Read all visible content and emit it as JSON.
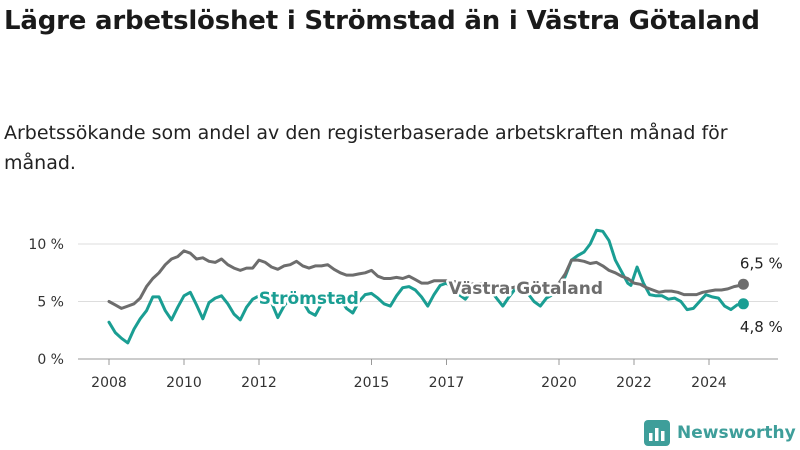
{
  "header": {
    "title": "Lägre arbetslöshet i Strömstad än i Västra Götaland",
    "subtitle": "Arbetssökande som andel av den registerbaserade arbetskraften månad för månad."
  },
  "brand": {
    "name": "Newsworthy",
    "icon": "newsworthy-logo-icon",
    "color": "#3e9e9a"
  },
  "chart_data": {
    "type": "line",
    "title": "Lägre arbetslöshet i Strömstad än i Västra Götaland",
    "subtitle": "Arbetssökande som andel av den registerbaserade arbetskraften månad för månad.",
    "ylim": [
      0,
      10
    ],
    "xlim": [
      "2008-01",
      "2025-12"
    ],
    "y_ticks": [
      {
        "value": 0,
        "label": "0 %"
      },
      {
        "value": 5,
        "label": "5 %"
      },
      {
        "value": 10,
        "label": "10 %"
      }
    ],
    "x_ticks": [
      {
        "value": "2008-01",
        "label": "2008"
      },
      {
        "value": "2010-01",
        "label": "2010"
      },
      {
        "value": "2012-01",
        "label": "2012"
      },
      {
        "value": "2015-01",
        "label": "2015"
      },
      {
        "value": "2017-01",
        "label": "2017"
      },
      {
        "value": "2020-01",
        "label": "2020"
      },
      {
        "value": "2022-01",
        "label": "2022"
      },
      {
        "value": "2024-01",
        "label": "2024"
      }
    ],
    "grid": true,
    "series": [
      {
        "name": "Strömstad",
        "color": "#1a9e93",
        "label_at": "2011-11",
        "end_label": "4,8 %",
        "points": [
          [
            "2008-01",
            3.2
          ],
          [
            "2008-03",
            2.3
          ],
          [
            "2008-05",
            1.8
          ],
          [
            "2008-07",
            1.4
          ],
          [
            "2008-09",
            2.6
          ],
          [
            "2008-11",
            3.5
          ],
          [
            "2009-01",
            4.2
          ],
          [
            "2009-03",
            5.4
          ],
          [
            "2009-05",
            5.4
          ],
          [
            "2009-07",
            4.2
          ],
          [
            "2009-09",
            3.4
          ],
          [
            "2009-11",
            4.5
          ],
          [
            "2010-01",
            5.5
          ],
          [
            "2010-03",
            5.8
          ],
          [
            "2010-05",
            4.7
          ],
          [
            "2010-07",
            3.5
          ],
          [
            "2010-09",
            4.9
          ],
          [
            "2010-11",
            5.3
          ],
          [
            "2011-01",
            5.5
          ],
          [
            "2011-03",
            4.8
          ],
          [
            "2011-05",
            3.9
          ],
          [
            "2011-07",
            3.4
          ],
          [
            "2011-09",
            4.5
          ],
          [
            "2011-11",
            5.2
          ],
          [
            "2012-01",
            5.5
          ],
          [
            "2012-03",
            5.5
          ],
          [
            "2012-05",
            4.9
          ],
          [
            "2012-07",
            3.6
          ],
          [
            "2012-09",
            4.6
          ],
          [
            "2012-11",
            5.3
          ],
          [
            "2013-01",
            5.4
          ],
          [
            "2013-03",
            5.0
          ],
          [
            "2013-05",
            4.1
          ],
          [
            "2013-07",
            3.8
          ],
          [
            "2013-09",
            4.8
          ],
          [
            "2013-11",
            5.4
          ],
          [
            "2014-01",
            5.3
          ],
          [
            "2014-03",
            5.2
          ],
          [
            "2014-05",
            4.4
          ],
          [
            "2014-07",
            4.0
          ],
          [
            "2014-09",
            5.0
          ],
          [
            "2014-11",
            5.6
          ],
          [
            "2015-01",
            5.7
          ],
          [
            "2015-03",
            5.3
          ],
          [
            "2015-05",
            4.8
          ],
          [
            "2015-07",
            4.6
          ],
          [
            "2015-09",
            5.5
          ],
          [
            "2015-11",
            6.2
          ],
          [
            "2016-01",
            6.3
          ],
          [
            "2016-03",
            6.0
          ],
          [
            "2016-05",
            5.4
          ],
          [
            "2016-07",
            4.6
          ],
          [
            "2016-09",
            5.6
          ],
          [
            "2016-11",
            6.4
          ],
          [
            "2017-01",
            6.6
          ],
          [
            "2017-03",
            6.1
          ],
          [
            "2017-05",
            5.6
          ],
          [
            "2017-07",
            5.2
          ],
          [
            "2017-09",
            5.9
          ],
          [
            "2017-11",
            6.4
          ],
          [
            "2018-01",
            6.5
          ],
          [
            "2018-03",
            6.0
          ],
          [
            "2018-05",
            5.3
          ],
          [
            "2018-07",
            4.6
          ],
          [
            "2018-09",
            5.4
          ],
          [
            "2018-11",
            6.1
          ],
          [
            "2019-01",
            6.2
          ],
          [
            "2019-03",
            5.7
          ],
          [
            "2019-05",
            5.0
          ],
          [
            "2019-07",
            4.6
          ],
          [
            "2019-09",
            5.3
          ],
          [
            "2019-11",
            5.6
          ],
          [
            "2020-01",
            6.0
          ],
          [
            "2020-03",
            7.2
          ],
          [
            "2020-05",
            8.6
          ],
          [
            "2020-07",
            9.0
          ],
          [
            "2020-09",
            9.3
          ],
          [
            "2020-11",
            10.0
          ],
          [
            "2021-01",
            11.2
          ],
          [
            "2021-03",
            11.1
          ],
          [
            "2021-05",
            10.3
          ],
          [
            "2021-07",
            8.6
          ],
          [
            "2021-09",
            7.6
          ],
          [
            "2021-11",
            6.6
          ],
          [
            "2021-12",
            6.4
          ],
          [
            "2022-02",
            8.0
          ],
          [
            "2022-04",
            6.6
          ],
          [
            "2022-06",
            5.6
          ],
          [
            "2022-08",
            5.5
          ],
          [
            "2022-10",
            5.5
          ],
          [
            "2022-12",
            5.2
          ],
          [
            "2023-02",
            5.3
          ],
          [
            "2023-04",
            5.0
          ],
          [
            "2023-06",
            4.3
          ],
          [
            "2023-08",
            4.4
          ],
          [
            "2023-10",
            5.0
          ],
          [
            "2023-12",
            5.6
          ],
          [
            "2024-02",
            5.4
          ],
          [
            "2024-04",
            5.3
          ],
          [
            "2024-06",
            4.6
          ],
          [
            "2024-08",
            4.3
          ],
          [
            "2024-10",
            4.7
          ],
          [
            "2024-12",
            4.8
          ]
        ]
      },
      {
        "name": "Västra Götaland",
        "color": "#6d6d6d",
        "label_at": "2017-01",
        "end_label": "6,5 %",
        "points": [
          [
            "2008-01",
            5.0
          ],
          [
            "2008-03",
            4.7
          ],
          [
            "2008-05",
            4.4
          ],
          [
            "2008-07",
            4.6
          ],
          [
            "2008-09",
            4.8
          ],
          [
            "2008-11",
            5.3
          ],
          [
            "2009-01",
            6.3
          ],
          [
            "2009-03",
            7.0
          ],
          [
            "2009-05",
            7.5
          ],
          [
            "2009-07",
            8.2
          ],
          [
            "2009-09",
            8.7
          ],
          [
            "2009-11",
            8.9
          ],
          [
            "2010-01",
            9.4
          ],
          [
            "2010-03",
            9.2
          ],
          [
            "2010-05",
            8.7
          ],
          [
            "2010-07",
            8.8
          ],
          [
            "2010-09",
            8.5
          ],
          [
            "2010-11",
            8.4
          ],
          [
            "2011-01",
            8.7
          ],
          [
            "2011-03",
            8.2
          ],
          [
            "2011-05",
            7.9
          ],
          [
            "2011-07",
            7.7
          ],
          [
            "2011-09",
            7.9
          ],
          [
            "2011-11",
            7.9
          ],
          [
            "2012-01",
            8.6
          ],
          [
            "2012-03",
            8.4
          ],
          [
            "2012-05",
            8.0
          ],
          [
            "2012-07",
            7.8
          ],
          [
            "2012-09",
            8.1
          ],
          [
            "2012-11",
            8.2
          ],
          [
            "2013-01",
            8.5
          ],
          [
            "2013-03",
            8.1
          ],
          [
            "2013-05",
            7.9
          ],
          [
            "2013-07",
            8.1
          ],
          [
            "2013-09",
            8.1
          ],
          [
            "2013-11",
            8.2
          ],
          [
            "2014-01",
            7.8
          ],
          [
            "2014-03",
            7.5
          ],
          [
            "2014-05",
            7.3
          ],
          [
            "2014-07",
            7.3
          ],
          [
            "2014-09",
            7.4
          ],
          [
            "2014-11",
            7.5
          ],
          [
            "2015-01",
            7.7
          ],
          [
            "2015-03",
            7.2
          ],
          [
            "2015-05",
            7.0
          ],
          [
            "2015-07",
            7.0
          ],
          [
            "2015-09",
            7.1
          ],
          [
            "2015-11",
            7.0
          ],
          [
            "2016-01",
            7.2
          ],
          [
            "2016-03",
            6.9
          ],
          [
            "2016-05",
            6.6
          ],
          [
            "2016-07",
            6.6
          ],
          [
            "2016-09",
            6.8
          ],
          [
            "2016-11",
            6.8
          ],
          [
            "2017-01",
            6.8
          ],
          [
            "2017-04",
            6.7
          ],
          [
            "2017-07",
            6.6
          ],
          [
            "2017-10",
            6.5
          ],
          [
            "2018-01",
            6.6
          ],
          [
            "2018-04",
            6.4
          ],
          [
            "2018-07",
            6.2
          ],
          [
            "2018-10",
            6.2
          ],
          [
            "2019-01",
            6.4
          ],
          [
            "2019-04",
            6.2
          ],
          [
            "2019-07",
            6.0
          ],
          [
            "2019-10",
            6.0
          ],
          [
            "2020-01",
            6.6
          ],
          [
            "2020-03",
            7.4
          ],
          [
            "2020-05",
            8.6
          ],
          [
            "2020-07",
            8.6
          ],
          [
            "2020-09",
            8.5
          ],
          [
            "2020-11",
            8.3
          ],
          [
            "2021-01",
            8.4
          ],
          [
            "2021-03",
            8.1
          ],
          [
            "2021-05",
            7.7
          ],
          [
            "2021-07",
            7.5
          ],
          [
            "2021-09",
            7.2
          ],
          [
            "2021-11",
            7.0
          ],
          [
            "2022-01",
            6.6
          ],
          [
            "2022-03",
            6.5
          ],
          [
            "2022-05",
            6.2
          ],
          [
            "2022-07",
            6.0
          ],
          [
            "2022-09",
            5.8
          ],
          [
            "2022-11",
            5.9
          ],
          [
            "2023-01",
            5.9
          ],
          [
            "2023-03",
            5.8
          ],
          [
            "2023-05",
            5.6
          ],
          [
            "2023-07",
            5.6
          ],
          [
            "2023-09",
            5.6
          ],
          [
            "2023-11",
            5.8
          ],
          [
            "2024-01",
            5.9
          ],
          [
            "2024-03",
            6.0
          ],
          [
            "2024-05",
            6.0
          ],
          [
            "2024-07",
            6.1
          ],
          [
            "2024-09",
            6.3
          ],
          [
            "2024-11",
            6.4
          ],
          [
            "2024-12",
            6.5
          ]
        ]
      }
    ]
  }
}
